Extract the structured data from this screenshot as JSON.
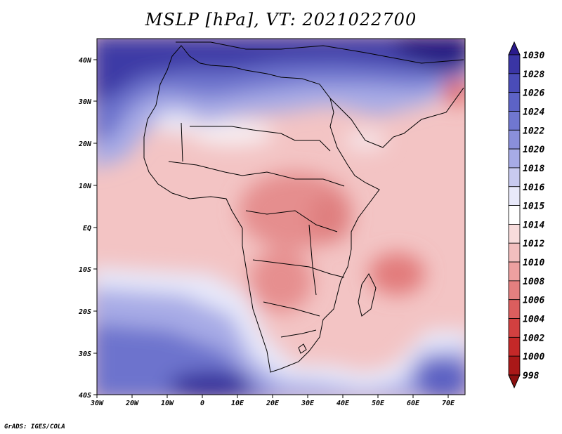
{
  "title": "MSLP [hPa], VT: 2021022700",
  "credit": "GrADS: IGES/COLA",
  "map": {
    "variable": "Mean sea level pressure",
    "units": "hPa",
    "valid_time": "2021022700",
    "lon_range": [
      -30,
      75
    ],
    "lat_range": [
      -40,
      45
    ],
    "x_ticks": [
      "30W",
      "20W",
      "10W",
      "0",
      "10E",
      "20E",
      "30E",
      "40E",
      "50E",
      "60E",
      "70E"
    ],
    "y_ticks": [
      "40N",
      "30N",
      "20N",
      "10N",
      "EQ",
      "10S",
      "20S",
      "30S",
      "40S"
    ]
  },
  "colorbar": {
    "levels": [
      "1030",
      "1028",
      "1026",
      "1024",
      "1022",
      "1020",
      "1018",
      "1016",
      "1015",
      "1014",
      "1012",
      "1010",
      "1008",
      "1006",
      "1004",
      "1002",
      "1000",
      "998"
    ],
    "colors": [
      "#2a1a8c",
      "#3a35a5",
      "#4a4cb8",
      "#5d63c6",
      "#7077d0",
      "#8a8fdb",
      "#a7abe6",
      "#c8caf0",
      "#e8e9fa",
      "#ffffff",
      "#f8dcdc",
      "#f2bebe",
      "#eda0a0",
      "#e47f7f",
      "#db5e5e",
      "#d24040",
      "#c42828",
      "#a91818",
      "#8c1010"
    ]
  }
}
